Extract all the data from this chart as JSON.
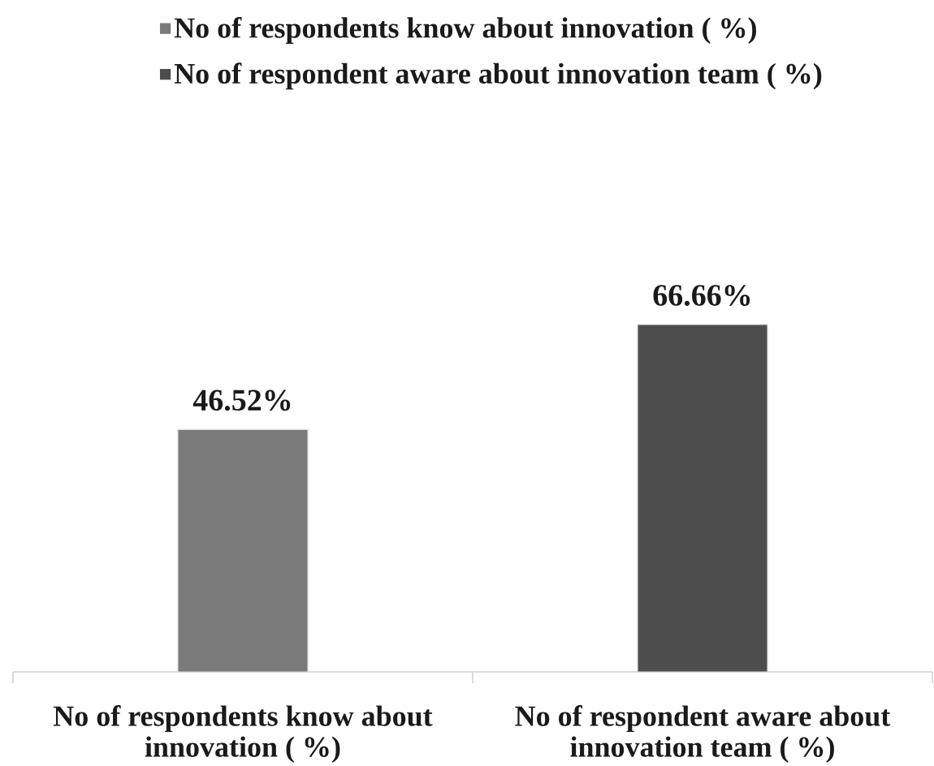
{
  "chart_data": {
    "type": "bar",
    "categories": [
      "No of respondents know about innovation ( %)",
      "No of respondent aware about innovation team ( %)"
    ],
    "series": [
      {
        "name": "No of respondents know about innovation ( %)",
        "color": "#7a7a7a",
        "values": [
          46.52,
          null
        ],
        "value_labels": [
          "46.52%",
          null
        ]
      },
      {
        "name": "No of respondent aware about innovation team ( %)",
        "color": "#4d4d4d",
        "values": [
          null,
          66.66
        ],
        "value_labels": [
          null,
          "66.66%"
        ]
      }
    ],
    "legend": "top",
    "tick_labels": "x"
  }
}
